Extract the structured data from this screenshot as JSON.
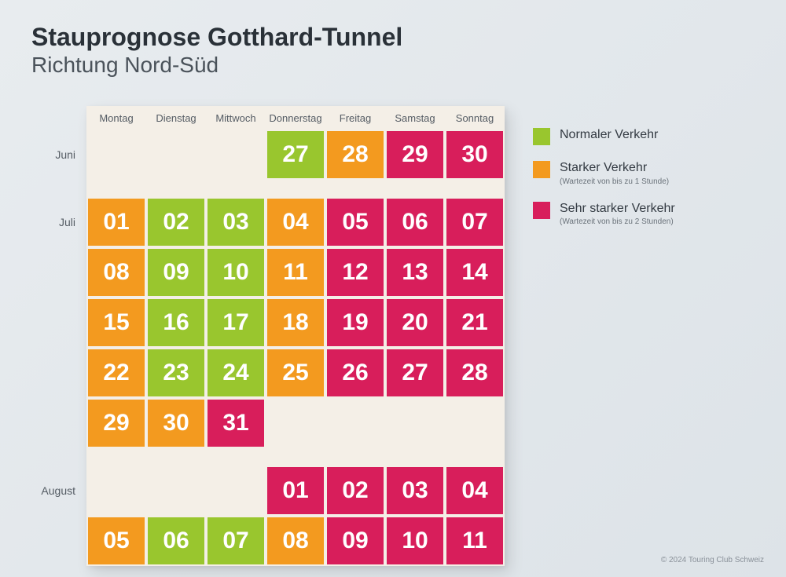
{
  "title": "Stauprognose Gotthard-Tunnel",
  "subtitle": "Richtung Nord-Süd",
  "footer": "© 2024 Touring Club Schweiz",
  "colors": {
    "normal": "#99c62e",
    "heavy": "#f39a1f",
    "very_heavy": "#d81e5b",
    "cell_border": "#f4efe7",
    "panel_bg": "#f4efe7"
  },
  "legend": [
    {
      "key": "normal",
      "label": "Normaler Verkehr",
      "sub": ""
    },
    {
      "key": "heavy",
      "label": "Starker Verkehr",
      "sub": "(Wartezeit von bis zu 1 Stunde)"
    },
    {
      "key": "very_heavy",
      "label": "Sehr starker Verkehr",
      "sub": "(Wartezeit von bis zu 2 Stunden)"
    }
  ],
  "days": [
    "Montag",
    "Dienstag",
    "Mittwoch",
    "Donnerstag",
    "Freitag",
    "Samstag",
    "Sonntag"
  ],
  "months": [
    {
      "name": "Juni",
      "weeks": 1,
      "label_week": 0
    },
    {
      "name": "Juli",
      "weeks": 5,
      "label_week": 0
    },
    {
      "name": "August",
      "weeks": 2,
      "label_week": 0
    }
  ],
  "calendar": [
    [
      null,
      null,
      null,
      {
        "d": "27",
        "c": "normal"
      },
      {
        "d": "28",
        "c": "heavy"
      },
      {
        "d": "29",
        "c": "very_heavy"
      },
      {
        "d": "30",
        "c": "very_heavy"
      }
    ],
    [
      {
        "d": "01",
        "c": "heavy"
      },
      {
        "d": "02",
        "c": "normal"
      },
      {
        "d": "03",
        "c": "normal"
      },
      {
        "d": "04",
        "c": "heavy"
      },
      {
        "d": "05",
        "c": "very_heavy"
      },
      {
        "d": "06",
        "c": "very_heavy"
      },
      {
        "d": "07",
        "c": "very_heavy"
      }
    ],
    [
      {
        "d": "08",
        "c": "heavy"
      },
      {
        "d": "09",
        "c": "normal"
      },
      {
        "d": "10",
        "c": "normal"
      },
      {
        "d": "11",
        "c": "heavy"
      },
      {
        "d": "12",
        "c": "very_heavy"
      },
      {
        "d": "13",
        "c": "very_heavy"
      },
      {
        "d": "14",
        "c": "very_heavy"
      }
    ],
    [
      {
        "d": "15",
        "c": "heavy"
      },
      {
        "d": "16",
        "c": "normal"
      },
      {
        "d": "17",
        "c": "normal"
      },
      {
        "d": "18",
        "c": "heavy"
      },
      {
        "d": "19",
        "c": "very_heavy"
      },
      {
        "d": "20",
        "c": "very_heavy"
      },
      {
        "d": "21",
        "c": "very_heavy"
      }
    ],
    [
      {
        "d": "22",
        "c": "heavy"
      },
      {
        "d": "23",
        "c": "normal"
      },
      {
        "d": "24",
        "c": "normal"
      },
      {
        "d": "25",
        "c": "heavy"
      },
      {
        "d": "26",
        "c": "very_heavy"
      },
      {
        "d": "27",
        "c": "very_heavy"
      },
      {
        "d": "28",
        "c": "very_heavy"
      }
    ],
    [
      {
        "d": "29",
        "c": "heavy"
      },
      {
        "d": "30",
        "c": "heavy"
      },
      {
        "d": "31",
        "c": "very_heavy"
      },
      null,
      null,
      null,
      null
    ],
    [
      null,
      null,
      null,
      {
        "d": "01",
        "c": "very_heavy"
      },
      {
        "d": "02",
        "c": "very_heavy"
      },
      {
        "d": "03",
        "c": "very_heavy"
      },
      {
        "d": "04",
        "c": "very_heavy"
      }
    ],
    [
      {
        "d": "05",
        "c": "heavy"
      },
      {
        "d": "06",
        "c": "normal"
      },
      {
        "d": "07",
        "c": "normal"
      },
      {
        "d": "08",
        "c": "heavy"
      },
      {
        "d": "09",
        "c": "very_heavy"
      },
      {
        "d": "10",
        "c": "very_heavy"
      },
      {
        "d": "11",
        "c": "very_heavy"
      }
    ]
  ],
  "cell": {
    "w": 76,
    "h": 64,
    "font": 30
  },
  "sep_h": 22,
  "hdr_h": 30
}
